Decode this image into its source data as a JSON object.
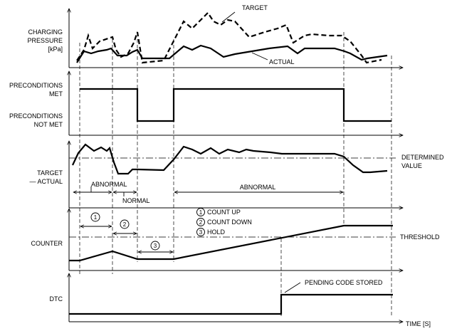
{
  "labels": {
    "charging_pressure": [
      "CHARGING",
      "PRESSURE",
      "[kPa]"
    ],
    "target": "TARGET",
    "actual": "ACTUAL",
    "preconditions_met": [
      "PRECONDITIONS",
      "MET"
    ],
    "preconditions_not_met": [
      "PRECONDITIONS",
      "NOT MET"
    ],
    "target_actual": [
      "TARGET",
      "— ACTUAL"
    ],
    "determined_value": [
      "DETERMINED",
      "VALUE"
    ],
    "abnormal_1": "ABNORMAL",
    "normal": "NORMAL",
    "abnormal_2": "ABNORMAL",
    "counter": "COUNTER",
    "threshold": "THRESHOLD",
    "legend_count_up": "COUNT UP",
    "legend_count_down": "COUNT DOWN",
    "legend_hold": "HOLD",
    "marker_1": "1",
    "marker_2": "2",
    "marker_3": "3",
    "dtc": "DTC",
    "pending_code_stored": "PENDING CODE STORED",
    "time_axis": "TIME [S]"
  }
}
